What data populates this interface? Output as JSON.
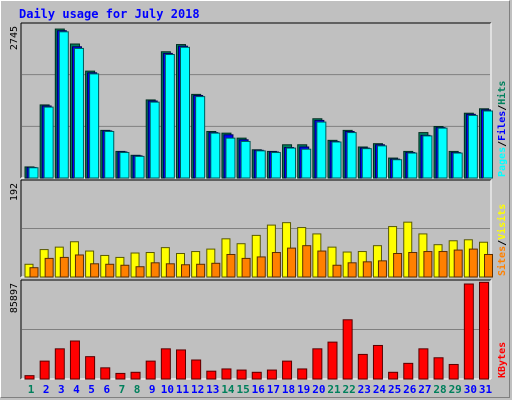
{
  "title": "Daily usage for July 2018",
  "colors": {
    "background": "#c0c0c0",
    "title": "#0000ff",
    "hits": "#00805c",
    "files": "#0000ff",
    "pages": "#00ffff",
    "visits": "#ffff00",
    "sites": "#ff8000",
    "kbytes": "#ff0000",
    "weekend_label": "#00805c",
    "weekday_label": "#0000ff"
  },
  "chart_data": [
    {
      "type": "bar",
      "panel": "top",
      "ylabel_max": "2745",
      "ylim": [
        0,
        2745
      ],
      "legend": [
        "Pages",
        "Files",
        "Hits"
      ],
      "categories": [
        "1",
        "2",
        "3",
        "4",
        "5",
        "6",
        "7",
        "8",
        "9",
        "10",
        "11",
        "12",
        "13",
        "14",
        "15",
        "16",
        "17",
        "18",
        "19",
        "20",
        "21",
        "22",
        "23",
        "24",
        "25",
        "26",
        "27",
        "28",
        "29",
        "30",
        "31"
      ],
      "weekend": [
        1,
        7,
        8,
        14,
        15,
        21,
        22,
        28,
        29
      ],
      "series": [
        {
          "name": "Hits",
          "values": [
            200,
            1320,
            2690,
            2420,
            1930,
            860,
            480,
            410,
            1410,
            2280,
            2410,
            1510,
            840,
            810,
            720,
            510,
            480,
            600,
            600,
            1070,
            680,
            860,
            560,
            620,
            360,
            480,
            820,
            930,
            480,
            1170,
            1250
          ]
        },
        {
          "name": "Files",
          "values": [
            190,
            1300,
            2660,
            2370,
            1900,
            850,
            470,
            400,
            1390,
            2250,
            2380,
            1490,
            820,
            780,
            690,
            500,
            470,
            550,
            560,
            1040,
            660,
            840,
            540,
            600,
            340,
            460,
            770,
            910,
            460,
            1150,
            1230
          ]
        },
        {
          "name": "Pages",
          "values": [
            185,
            1280,
            2640,
            2340,
            1880,
            840,
            460,
            390,
            1370,
            2230,
            2360,
            1470,
            810,
            720,
            660,
            490,
            460,
            540,
            520,
            1010,
            650,
            820,
            530,
            580,
            330,
            450,
            760,
            900,
            450,
            1130,
            1210
          ]
        }
      ]
    },
    {
      "type": "bar",
      "panel": "middle",
      "ylabel_max": "192",
      "ylim": [
        0,
        192
      ],
      "legend": [
        "Sites",
        "Visits"
      ],
      "categories": [
        "1",
        "2",
        "3",
        "4",
        "5",
        "6",
        "7",
        "8",
        "9",
        "10",
        "11",
        "12",
        "13",
        "14",
        "15",
        "16",
        "17",
        "18",
        "19",
        "20",
        "21",
        "22",
        "23",
        "24",
        "25",
        "26",
        "27",
        "28",
        "29",
        "30",
        "31"
      ],
      "series": [
        {
          "name": "Visits",
          "values": [
            26,
            56,
            61,
            72,
            53,
            44,
            40,
            49,
            50,
            60,
            48,
            52,
            57,
            78,
            68,
            85,
            106,
            111,
            101,
            88,
            61,
            51,
            52,
            64,
            103,
            112,
            88,
            66,
            74,
            76,
            71
          ]
        },
        {
          "name": "Sites",
          "values": [
            19,
            38,
            40,
            45,
            27,
            26,
            24,
            21,
            29,
            27,
            25,
            26,
            28,
            46,
            38,
            41,
            50,
            59,
            64,
            53,
            24,
            29,
            31,
            33,
            48,
            50,
            52,
            52,
            55,
            57,
            46
          ]
        }
      ]
    },
    {
      "type": "bar",
      "panel": "bottom",
      "ylabel_max": "85897",
      "ylim": [
        0,
        85897
      ],
      "legend": [
        "KBytes"
      ],
      "categories": [
        "1",
        "2",
        "3",
        "4",
        "5",
        "6",
        "7",
        "8",
        "9",
        "10",
        "11",
        "12",
        "13",
        "14",
        "15",
        "16",
        "17",
        "18",
        "19",
        "20",
        "21",
        "22",
        "23",
        "24",
        "25",
        "26",
        "27",
        "28",
        "29",
        "30",
        "31"
      ],
      "series": [
        {
          "name": "KBytes",
          "values": [
            3000,
            16000,
            27000,
            34000,
            20000,
            10000,
            5000,
            6000,
            16000,
            27000,
            26000,
            17000,
            7000,
            9000,
            8000,
            6000,
            8000,
            16000,
            9000,
            27000,
            33000,
            53000,
            22000,
            30000,
            6000,
            14000,
            27000,
            19000,
            13000,
            85000,
            86500
          ]
        }
      ]
    }
  ]
}
